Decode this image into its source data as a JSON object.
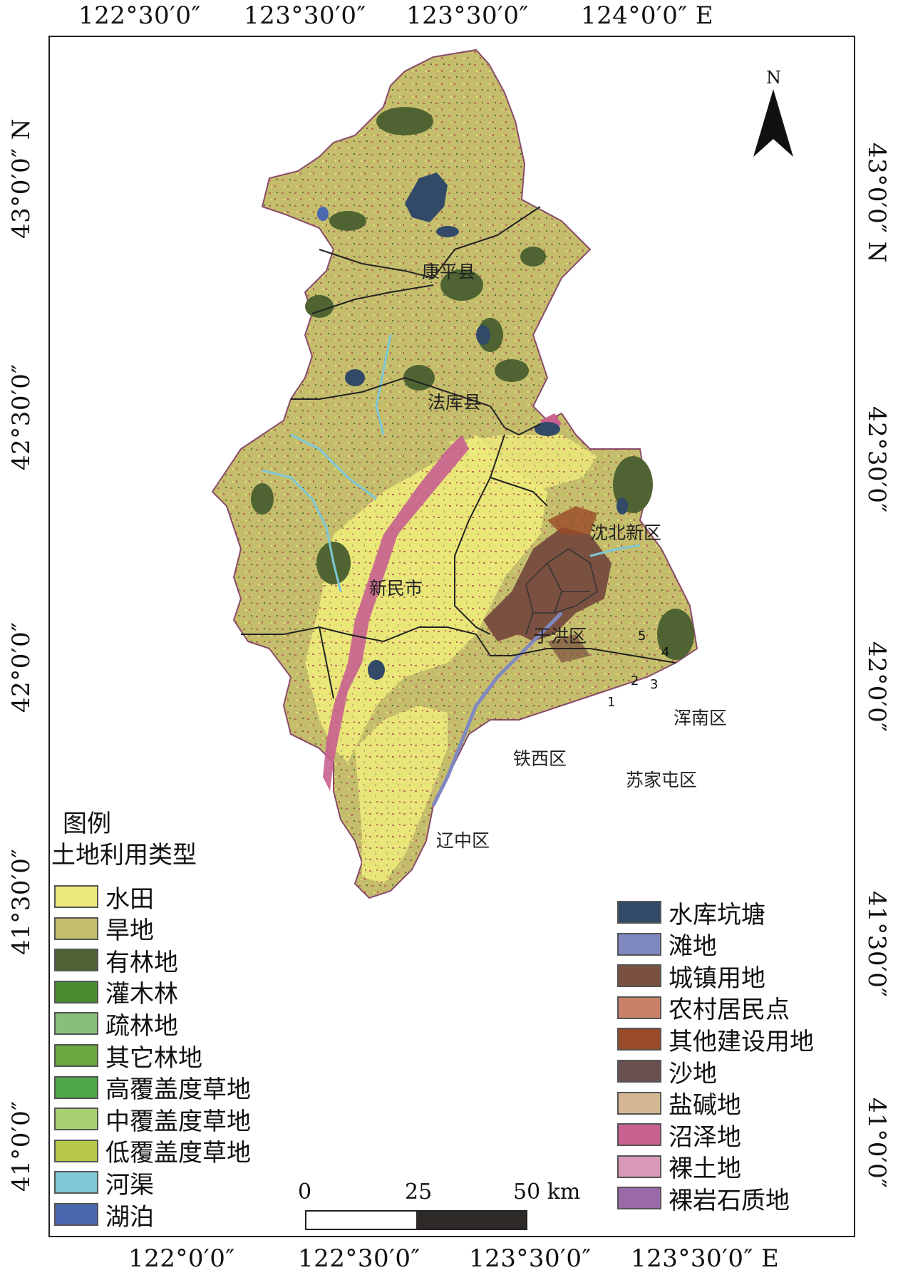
{
  "coords": {
    "top": [
      "122°30′0″",
      "123°30′0″",
      "123°30′0″",
      "124°0′0″  E"
    ],
    "bottom": [
      "122°0′0″",
      "122°30′0″",
      "123°30′0″",
      "123°30′0″  E"
    ],
    "left": [
      "43°0′0″  N",
      "42°30′0″",
      "42°0′0″",
      "41°30′0″",
      "41°0′0″"
    ],
    "right": [
      "43°0′0″  N",
      "42°30′0″",
      "42°0′0″",
      "41°30′0″",
      "41°0′0″"
    ]
  },
  "north_arrow": {
    "label": "N"
  },
  "regions": {
    "kangping": "康平县",
    "faku": "法库县",
    "shenbei": "沈北新区",
    "xinmin": "新民市",
    "yuhong": "于洪区",
    "hunnan": "浑南区",
    "tiexi": "铁西区",
    "sujiatun": "苏家屯区",
    "liaozhong": "辽中区"
  },
  "district_numbers": [
    "1",
    "2",
    "3",
    "4",
    "5"
  ],
  "legend": {
    "title": "图例",
    "subtitle": "土地利用类型",
    "left_items": [
      {
        "label": "水田",
        "color": "#ece97a"
      },
      {
        "label": "旱地",
        "color": "#c4bd6c"
      },
      {
        "label": "有林地",
        "color": "#4f6432"
      },
      {
        "label": "灌木林",
        "color": "#4a8c32"
      },
      {
        "label": "疏林地",
        "color": "#86c07a"
      },
      {
        "label": "其它林地",
        "color": "#6aa83e"
      },
      {
        "label": "高覆盖度草地",
        "color": "#4fa84a"
      },
      {
        "label": "中覆盖度草地",
        "color": "#a8d070"
      },
      {
        "label": "低覆盖度草地",
        "color": "#b8c848"
      },
      {
        "label": "河渠",
        "color": "#7ec8d8"
      },
      {
        "label": "湖泊",
        "color": "#4a68b0"
      }
    ],
    "right_items": [
      {
        "label": "水库坑塘",
        "color": "#324a68"
      },
      {
        "label": "滩地",
        "color": "#8088c0"
      },
      {
        "label": "城镇用地",
        "color": "#7a5040"
      },
      {
        "label": "农村居民点",
        "color": "#c88068"
      },
      {
        "label": "其他建设用地",
        "color": "#9a4a28"
      },
      {
        "label": "沙地",
        "color": "#6a5050"
      },
      {
        "label": "盐碱地",
        "color": "#d4b894"
      },
      {
        "label": "沼泽地",
        "color": "#c86090"
      },
      {
        "label": "裸土地",
        "color": "#d898b8"
      },
      {
        "label": "裸岩石质地",
        "color": "#9a6aa8"
      }
    ]
  },
  "scale_bar": {
    "labels": [
      "0",
      "25",
      "50 km"
    ]
  }
}
